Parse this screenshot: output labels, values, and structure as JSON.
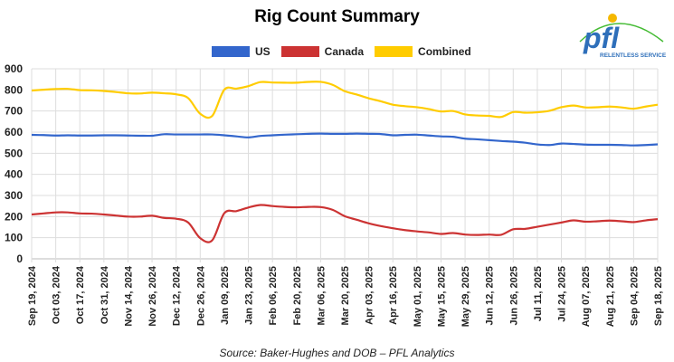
{
  "chart_data": {
    "type": "line",
    "title": "Rig Count Summary",
    "source": "Source: Baker-Hughes and DOB – PFL Analytics",
    "logo_text": {
      "brand": "pfl",
      "tagline": "RELENTLESS SERVICE"
    },
    "xlabel": "",
    "ylabel": "",
    "ylim": [
      0,
      900
    ],
    "yticks": [
      0,
      100,
      200,
      300,
      400,
      500,
      600,
      700,
      800,
      900
    ],
    "grid": true,
    "legend_position": "top",
    "x_tick_labels": [
      "Sep 19, 2024",
      "Oct 03, 2024",
      "Oct 17, 2024",
      "Oct 31, 2024",
      "Nov 14, 2024",
      "Nov 26, 2024",
      "Dec 12, 2024",
      "Dec 26, 2024",
      "Jan 09, 2025",
      "Jan 23, 2025",
      "Feb 06, 2025",
      "Feb 20, 2025",
      "Mar 06, 2025",
      "Mar 20, 2025",
      "Apr 03, 2025",
      "Apr 16, 2025",
      "May 01, 2025",
      "May 15, 2025",
      "May 29, 2025",
      "Jun 12, 2025",
      "Jun 26, 2025",
      "Jul 11, 2025",
      "Jul 24, 2025",
      "Aug 07, 2025",
      "Aug 21, 2025",
      "Sep 04, 2025",
      "Sep 18, 2025"
    ],
    "series": [
      {
        "name": "US",
        "color": "#3366cc",
        "values": [
          587,
          586,
          584,
          585,
          584,
          584,
          585,
          585,
          584,
          583,
          583,
          590,
          589,
          589,
          589,
          589,
          585,
          580,
          575,
          582,
          585,
          588,
          590,
          592,
          593,
          592,
          592,
          593,
          592,
          591,
          585,
          587,
          588,
          584,
          580,
          578,
          569,
          566,
          562,
          558,
          555,
          550,
          542,
          539,
          546,
          544,
          541,
          540,
          540,
          539,
          537,
          539,
          542
        ]
      },
      {
        "name": "Canada",
        "color": "#cc3333",
        "values": [
          210,
          215,
          220,
          220,
          215,
          214,
          210,
          205,
          200,
          200,
          204,
          194,
          190,
          172,
          98,
          88,
          216,
          226,
          243,
          255,
          250,
          246,
          244,
          246,
          245,
          232,
          202,
          185,
          168,
          155,
          145,
          136,
          130,
          125,
          118,
          122,
          115,
          113,
          115,
          114,
          140,
          142,
          152,
          162,
          172,
          182,
          176,
          178,
          181,
          178,
          174,
          182,
          188
        ]
      },
      {
        "name": "Combined",
        "color": "#ffcc00",
        "values": [
          797,
          801,
          804,
          805,
          799,
          798,
          795,
          790,
          784,
          783,
          787,
          784,
          779,
          761,
          687,
          677,
          801,
          806,
          818,
          837,
          835,
          834,
          834,
          838,
          838,
          824,
          794,
          778,
          760,
          746,
          730,
          723,
          718,
          709,
          698,
          700,
          684,
          679,
          677,
          672,
          695,
          692,
          694,
          701,
          718,
          726,
          717,
          718,
          721,
          717,
          711,
          721,
          730
        ]
      }
    ]
  }
}
